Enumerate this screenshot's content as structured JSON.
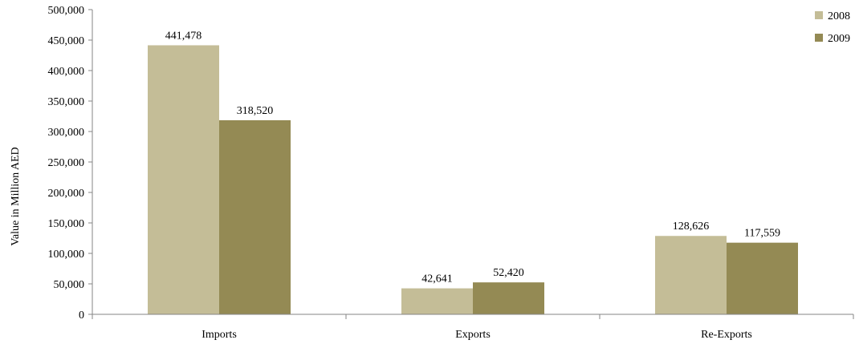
{
  "chart_data": {
    "type": "bar",
    "categories": [
      "Imports",
      "Exports",
      "Re-Exports"
    ],
    "series": [
      {
        "name": "2008",
        "values": [
          441478,
          42641,
          128626
        ],
        "labels": [
          "441,478",
          "42,641",
          "128,626"
        ],
        "color": "#c4bd97"
      },
      {
        "name": "2009",
        "values": [
          318520,
          52420,
          117559
        ],
        "labels": [
          "318,520",
          "52,420",
          "117,559"
        ],
        "color": "#948a54"
      }
    ],
    "title": "",
    "xlabel": "",
    "ylabel": "Value in Million AED",
    "ylim": [
      0,
      500000
    ],
    "yticks": [
      0,
      50000,
      100000,
      150000,
      200000,
      250000,
      300000,
      350000,
      400000,
      450000,
      500000
    ],
    "ytick_labels": [
      "0",
      "50,000",
      "100,000",
      "150,000",
      "200,000",
      "250,000",
      "300,000",
      "350,000",
      "400,000",
      "450,000",
      "500,000"
    ],
    "grid": false,
    "legend_position": "top-right",
    "axis_color": "#868686"
  }
}
